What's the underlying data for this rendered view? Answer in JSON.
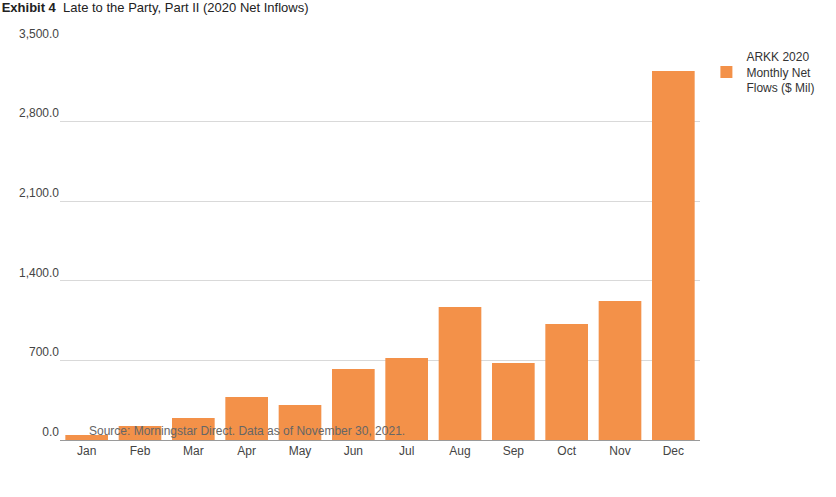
{
  "chart_data": {
    "type": "bar",
    "exhibit": "Exhibit 4",
    "title": "Late to the Party, Part II (2020 Net Inflows)",
    "source": "Source: Morningstar Direct. Data as of November 30, 2021.",
    "categories": [
      "Jan",
      "Feb",
      "Mar",
      "Apr",
      "May",
      "Jun",
      "Jul",
      "Aug",
      "Sep",
      "Oct",
      "Nov",
      "Dec"
    ],
    "series": [
      {
        "name": "ARKK 2020 Monthly Net Flows ($ Mil)",
        "color": "#f39149",
        "values": [
          45,
          123,
          193,
          378,
          308,
          624,
          721,
          1169,
          677,
          1020,
          1222,
          3244
        ]
      }
    ],
    "ylim": [
      0,
      3500
    ],
    "yticks": [
      {
        "value": 0,
        "label": "0.0"
      },
      {
        "value": 700,
        "label": "700.0"
      },
      {
        "value": 1400,
        "label": "1,400.0"
      },
      {
        "value": 2100,
        "label": "2,100.0"
      },
      {
        "value": 2800,
        "label": "2,800.0"
      },
      {
        "value": 3500,
        "label": "3,500.0"
      }
    ],
    "grid": true,
    "legend": "top right"
  }
}
